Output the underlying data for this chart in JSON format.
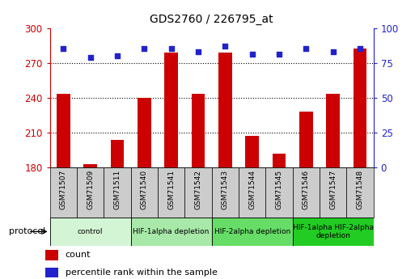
{
  "title": "GDS2760 / 226795_at",
  "samples": [
    "GSM71507",
    "GSM71509",
    "GSM71511",
    "GSM71540",
    "GSM71541",
    "GSM71542",
    "GSM71543",
    "GSM71544",
    "GSM71545",
    "GSM71546",
    "GSM71547",
    "GSM71548"
  ],
  "counts": [
    243,
    183,
    204,
    240,
    279,
    243,
    279,
    207,
    192,
    228,
    243,
    282
  ],
  "percentile_ranks": [
    85,
    79,
    80,
    85,
    85,
    83,
    87,
    81,
    81,
    85,
    83,
    85
  ],
  "ylim_left": [
    180,
    300
  ],
  "ylim_right": [
    0,
    100
  ],
  "yticks_left": [
    180,
    210,
    240,
    270,
    300
  ],
  "yticks_right": [
    0,
    25,
    50,
    75,
    100
  ],
  "bar_color": "#cc0000",
  "dot_color": "#2222cc",
  "bar_width": 0.5,
  "groups": [
    {
      "label": "control",
      "start": 0,
      "end": 3,
      "color": "#d4f5d4"
    },
    {
      "label": "HIF-1alpha depletion",
      "start": 3,
      "end": 6,
      "color": "#a8e8a8"
    },
    {
      "label": "HIF-2alpha depletion",
      "start": 6,
      "end": 9,
      "color": "#66dd66"
    },
    {
      "label": "HIF-1alpha HIF-2alpha\ndepletion",
      "start": 9,
      "end": 12,
      "color": "#22cc22"
    }
  ],
  "protocol_label": "protocol",
  "legend_count_label": "count",
  "legend_percentile_label": "percentile rank within the sample",
  "bar_label_color": "#cc0000",
  "dot_label_color": "#2222cc",
  "sample_box_color": "#cccccc",
  "background_fig": "#ffffff"
}
